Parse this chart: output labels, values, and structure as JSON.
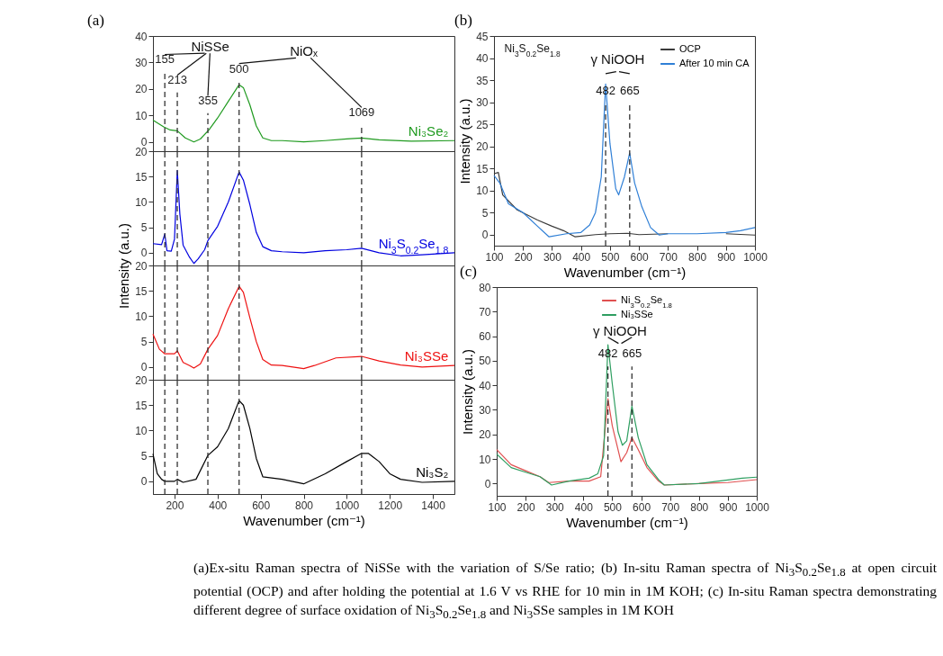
{
  "chart_data": [
    {
      "type": "line",
      "title": "(a)",
      "xlim": [
        100,
        1500
      ],
      "ylim": [
        -3.5,
        40
      ],
      "yticks": [
        0,
        10,
        20,
        30,
        40
      ],
      "tick_labels": "y",
      "grid": false,
      "legend": false,
      "series": [
        {
          "name": "Ni₃Se₂",
          "color": "#1f9a1f",
          "x": [
            100,
            150,
            180,
            213,
            250,
            290,
            320,
            360,
            400,
            450,
            500,
            520,
            550,
            580,
            610,
            650,
            700,
            800,
            900,
            1000,
            1069,
            1150,
            1300,
            1500
          ],
          "values": [
            8.2,
            5.7,
            4.5,
            4.2,
            1.5,
            0,
            1.1,
            4.5,
            9,
            15.3,
            21.6,
            20.5,
            14,
            6,
            1.5,
            0.5,
            0.5,
            0,
            0.5,
            1.1,
            1.5,
            0.8,
            0.3,
            0.5
          ]
        }
      ],
      "ref_lines": [
        {
          "axis": "x",
          "value": 155,
          "label": "155",
          "line_style": "dashed"
        },
        {
          "axis": "x",
          "value": 213,
          "label": "213",
          "line_style": "dashed"
        },
        {
          "axis": "x",
          "value": 355,
          "label": "355",
          "line_style": "dashed"
        },
        {
          "axis": "x",
          "value": 500,
          "label": "500",
          "line_style": "dashed"
        },
        {
          "axis": "x",
          "value": 1069,
          "label": "1069",
          "line_style": "dashed"
        }
      ],
      "annotations": [
        "NiSSe",
        "NiOₓ"
      ]
    },
    {
      "type": "line",
      "ylabel": "Intensity (a.u.)",
      "xlim": [
        100,
        1500
      ],
      "ylim": [
        -2.5,
        20
      ],
      "yticks": [
        0,
        5,
        10,
        15,
        20
      ],
      "tick_labels": "y",
      "grid": false,
      "legend": false,
      "series": [
        {
          "name": "Ni$_{3}$S$_{0.2}$Se$_{1.8}$",
          "color": "#0000e0",
          "x": [
            100,
            140,
            155,
            165,
            185,
            200,
            213,
            225,
            240,
            270,
            290,
            310,
            340,
            355,
            400,
            450,
            500,
            520,
            550,
            580,
            610,
            650,
            700,
            800,
            900,
            1000,
            1069,
            1150,
            1250,
            1350,
            1500
          ],
          "values": [
            1.8,
            1.6,
            3.7,
            0.4,
            0.3,
            2.7,
            16.2,
            7.6,
            1.5,
            -0.9,
            -2.1,
            -1.2,
            0.6,
            2.4,
            5.2,
            10,
            15.9,
            14.3,
            9.5,
            4,
            1.2,
            0.4,
            0.2,
            0,
            0.4,
            0.6,
            0.9,
            0,
            -0.6,
            -0.4,
            0
          ]
        }
      ],
      "ref_lines": [
        {
          "axis": "x",
          "value": 155,
          "line_style": "dashed"
        },
        {
          "axis": "x",
          "value": 213,
          "line_style": "dashed"
        },
        {
          "axis": "x",
          "value": 355,
          "line_style": "dashed"
        },
        {
          "axis": "x",
          "value": 500,
          "line_style": "dashed"
        },
        {
          "axis": "x",
          "value": 1069,
          "line_style": "dashed"
        }
      ]
    },
    {
      "type": "line",
      "xlim": [
        100,
        1500
      ],
      "ylim": [
        -2.5,
        20
      ],
      "yticks": [
        0,
        5,
        10,
        15,
        20
      ],
      "tick_labels": "y",
      "grid": false,
      "legend": false,
      "series": [
        {
          "name": "Ni₃SSe",
          "color": "#ee1111",
          "x": [
            100,
            130,
            155,
            200,
            213,
            240,
            270,
            290,
            320,
            355,
            400,
            450,
            500,
            520,
            550,
            580,
            610,
            650,
            700,
            800,
            850,
            950,
            1069,
            1150,
            1250,
            1350,
            1500
          ],
          "values": [
            6.5,
            3.5,
            2.6,
            2.6,
            3.2,
            0.9,
            0.3,
            -0.2,
            0.6,
            3.5,
            6.2,
            11.5,
            15.9,
            14.7,
            9.7,
            5,
            1.5,
            0.4,
            0.3,
            -0.3,
            0.3,
            1.8,
            2.1,
            1.2,
            0.4,
            0,
            0.3
          ]
        }
      ],
      "ref_lines": [
        {
          "axis": "x",
          "value": 155,
          "line_style": "dashed"
        },
        {
          "axis": "x",
          "value": 213,
          "line_style": "dashed"
        },
        {
          "axis": "x",
          "value": 355,
          "line_style": "dashed"
        },
        {
          "axis": "x",
          "value": 500,
          "line_style": "dashed"
        },
        {
          "axis": "x",
          "value": 1069,
          "line_style": "dashed"
        }
      ]
    },
    {
      "type": "line",
      "xlabel": "Wavenumber (cm⁻¹)",
      "xlim": [
        100,
        1500
      ],
      "xticks": [
        200,
        400,
        600,
        800,
        1000,
        1200,
        1400
      ],
      "ylim": [
        -2.5,
        20
      ],
      "yticks": [
        0,
        5,
        10,
        15,
        20
      ],
      "grid": false,
      "legend": false,
      "series": [
        {
          "name": "Ni₃S₂",
          "color": "#000000",
          "x": [
            100,
            120,
            140,
            155,
            200,
            213,
            240,
            300,
            355,
            400,
            450,
            500,
            520,
            550,
            580,
            610,
            700,
            800,
            900,
            1000,
            1069,
            1100,
            1150,
            1200,
            1250,
            1350,
            1500
          ],
          "values": [
            5.4,
            1.5,
            0.4,
            0,
            0,
            0.4,
            -0.2,
            0.4,
            5.1,
            6.8,
            10.4,
            15.9,
            15,
            10.4,
            4.5,
            0.9,
            0.4,
            -0.5,
            1.5,
            3.9,
            5.5,
            5.5,
            3.9,
            1.5,
            0.4,
            -0.2,
            0
          ]
        }
      ],
      "ref_lines": [
        {
          "axis": "x",
          "value": 155,
          "line_style": "dashed"
        },
        {
          "axis": "x",
          "value": 213,
          "line_style": "dashed"
        },
        {
          "axis": "x",
          "value": 355,
          "line_style": "dashed"
        },
        {
          "axis": "x",
          "value": 500,
          "line_style": "dashed"
        },
        {
          "axis": "x",
          "value": 1069,
          "line_style": "dashed"
        }
      ]
    },
    {
      "type": "line",
      "title": "(b)",
      "xlabel": "Wavenumber (cm⁻¹)",
      "ylabel": "Intensity (a.u.)",
      "xlim": [
        100,
        1000
      ],
      "xticks": [
        100,
        200,
        300,
        400,
        500,
        600,
        700,
        800,
        900,
        1000
      ],
      "ylim": [
        -2.5,
        45
      ],
      "yticks": [
        0,
        5,
        10,
        15,
        20,
        25,
        30,
        35,
        40,
        45
      ],
      "grid": false,
      "legend": "top right",
      "series": [
        {
          "name": "OCP",
          "color": "#3a3a3a",
          "x": [
            100,
            115,
            130,
            180,
            250,
            300,
            340,
            380,
            450,
            500,
            560,
            600,
            700,
            800,
            900,
            1000
          ],
          "values": [
            13.8,
            14.1,
            9,
            5.6,
            3.3,
            1.9,
            0.9,
            -0.5,
            0,
            0.2,
            0.3,
            0,
            0.2,
            null,
            0.2,
            -0.1
          ]
        },
        {
          "name": "After 10 min CA",
          "color": "#2f7fd6",
          "x": [
            100,
            120,
            150,
            200,
            250,
            290,
            350,
            400,
            430,
            450,
            470,
            485,
            500,
            520,
            530,
            550,
            568,
            585,
            610,
            640,
            670,
            700,
            800,
            900,
            950,
            1000
          ],
          "values": [
            13.4,
            11.7,
            7,
            5,
            1.9,
            -0.5,
            0.2,
            0.5,
            2.2,
            5,
            13.1,
            34.1,
            20.6,
            10.4,
            9,
            13.1,
            18.5,
            11.7,
            6.3,
            1.6,
            -0.1,
            0.2,
            0.2,
            0.5,
            0.9,
            1.6
          ]
        }
      ],
      "ref_lines": [
        {
          "axis": "x",
          "value": 485,
          "line_style": "dashed"
        },
        {
          "axis": "x",
          "value": 568,
          "line_style": "dashed"
        }
      ],
      "annotations": [
        "γ NiOOH",
        "482",
        "665",
        "Ni$_{3}$S$_{0.2}$Se$_{1.8}$"
      ]
    },
    {
      "type": "line",
      "title": "(c)",
      "xlabel": "Wavenumber (cm⁻¹)",
      "ylabel": "Intensity (a.u.)",
      "xlim": [
        100,
        1000
      ],
      "xticks": [
        100,
        200,
        300,
        400,
        500,
        600,
        700,
        800,
        900,
        1000
      ],
      "ylim": [
        -5,
        80
      ],
      "yticks": [
        0,
        10,
        20,
        30,
        40,
        50,
        60,
        70,
        80
      ],
      "grid": false,
      "legend": "top right",
      "series": [
        {
          "name": "Ni$_{3}$S$_{0.2}$Se$_{1.8}$",
          "color": "#e05050",
          "x": [
            100,
            150,
            200,
            250,
            280,
            350,
            420,
            460,
            485,
            500,
            530,
            550,
            568,
            590,
            620,
            660,
            680,
            800,
            900,
            1000
          ],
          "values": [
            13.8,
            7.7,
            5.2,
            2.8,
            0.4,
            1,
            1,
            2.8,
            34.5,
            23.5,
            8.9,
            12.6,
            18.7,
            13.8,
            6.5,
            1,
            -0.6,
            0,
            0.4,
            1.6
          ]
        },
        {
          "name": "Ni₃SSe",
          "color": "#2e9e60",
          "x": [
            100,
            150,
            200,
            250,
            290,
            350,
            420,
            450,
            470,
            485,
            500,
            520,
            535,
            550,
            568,
            590,
            620,
            660,
            680,
            800,
            950,
            1000
          ],
          "values": [
            12,
            6.5,
            4.6,
            2.8,
            -0.6,
            1,
            2.2,
            4,
            11.3,
            56.5,
            40.6,
            21.1,
            15.6,
            17.4,
            31.5,
            18.7,
            7.7,
            1.6,
            -0.6,
            0,
            2.2,
            2.6
          ]
        }
      ],
      "ref_lines": [
        {
          "axis": "x",
          "value": 485,
          "line_style": "dashed"
        },
        {
          "axis": "x",
          "value": 568,
          "line_style": "dashed"
        }
      ],
      "annotations": [
        "γ NiOOH",
        "482",
        "665"
      ]
    },
    {
      "type": "other",
      "annotations": [
        "(a)Ex-situ Raman spectra of NiSSe with the variation of S/Se ratio; (b) In-situ Raman spectra of Ni$_{3}$S$_{0.2}$Se$_{1.8}$ at open circuit potential (OCP) and after holding the potential at 1.6 V vs RHE for 10 min in 1M KOH; (c) In-situ Raman spectra demonstrating different degree of surface oxidation of Ni$_{3}$S$_{0.2}$Se$_{1.8}$ and Ni$_{3}$SSe samples in 1M KOH"
      ]
    }
  ]
}
